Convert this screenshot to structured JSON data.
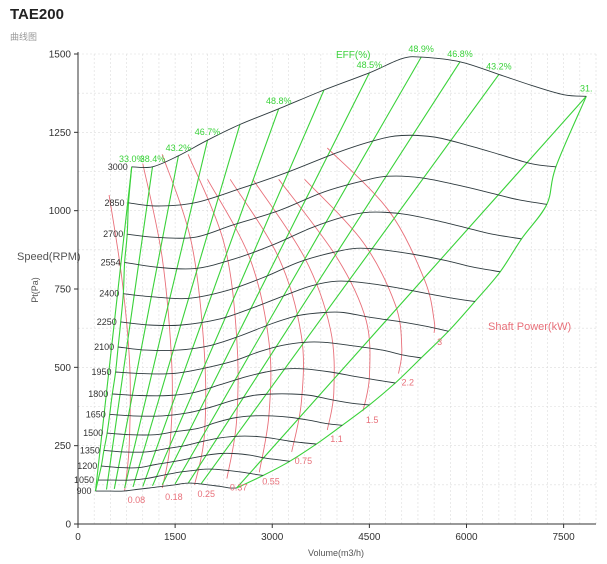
{
  "header": {
    "title": "TAE200",
    "subtitle": "曲线图"
  },
  "chart_data": {
    "type": "line",
    "xlabel": "Volume(m3/h)",
    "ylabel": "Pt(Pa)",
    "xlim": [
      0,
      8000
    ],
    "ylim": [
      0,
      1500
    ],
    "x_ticks": [
      "0",
      "1500",
      "3000",
      "4500",
      "6000",
      "7500"
    ],
    "x_tick_values": [
      0,
      1500,
      3000,
      4500,
      6000,
      7500
    ],
    "y_ticks": [
      "0",
      "250",
      "500",
      "750",
      "1000",
      "1250",
      "1500"
    ],
    "y_tick_values": [
      0,
      250,
      500,
      750,
      1000,
      1250,
      1500
    ],
    "grid": true,
    "speed_title": "Speed(RPM)",
    "eff_title": "EFF(%)",
    "power_title": "Shaft Power(kW)",
    "colors": {
      "speed": "#2f3b3f",
      "efficiency": "#3ad23a",
      "power": "#e8707a",
      "grid": "#dcdcdc"
    },
    "speed_series": [
      {
        "rpm": "3000",
        "x": [
          830,
          1150,
          1550,
          2000,
          2500,
          3100,
          3800,
          4500,
          5000,
          5300,
          5900,
          6500,
          7000,
          7500,
          7850
        ],
        "y": [
          1140,
          1140,
          1175,
          1225,
          1275,
          1325,
          1385,
          1440,
          1485,
          1490,
          1475,
          1435,
          1400,
          1370,
          1365
        ]
      },
      {
        "rpm": "2850",
        "x": [
          780,
          1200,
          1800,
          2500,
          3200,
          4000,
          4600,
          5000,
          5500,
          6000,
          6500,
          7000,
          7380
        ],
        "y": [
          1025,
          1015,
          1025,
          1070,
          1120,
          1185,
          1225,
          1240,
          1235,
          1210,
          1180,
          1150,
          1140
        ]
      },
      {
        "rpm": "2700",
        "x": [
          760,
          1200,
          1800,
          2400,
          3100,
          3800,
          4400,
          4800,
          5300,
          5900,
          6400,
          6800,
          7240
        ],
        "y": [
          925,
          915,
          915,
          955,
          1000,
          1060,
          1095,
          1110,
          1105,
          1080,
          1055,
          1035,
          1020
        ]
      },
      {
        "rpm": "2554",
        "x": [
          720,
          1200,
          1800,
          2400,
          3000,
          3600,
          4100,
          4500,
          5000,
          5500,
          6000,
          6400,
          6850
        ],
        "y": [
          835,
          820,
          815,
          845,
          890,
          945,
          980,
          995,
          990,
          970,
          945,
          925,
          910
        ]
      },
      {
        "rpm": "2400",
        "x": [
          700,
          1150,
          1700,
          2300,
          2900,
          3400,
          3900,
          4300,
          4700,
          5200,
          5700,
          6100,
          6520
        ],
        "y": [
          735,
          725,
          720,
          745,
          790,
          835,
          865,
          880,
          875,
          860,
          840,
          820,
          805
        ]
      },
      {
        "rpm": "2250",
        "x": [
          660,
          1100,
          1600,
          2200,
          2700,
          3200,
          3600,
          4000,
          4400,
          4900,
          5400,
          5800,
          6130
        ],
        "y": [
          645,
          635,
          635,
          655,
          690,
          730,
          760,
          775,
          770,
          755,
          735,
          720,
          710
        ]
      },
      {
        "rpm": "2100",
        "x": [
          620,
          1050,
          1550,
          2050,
          2500,
          3000,
          3400,
          3800,
          4100,
          4500,
          5000,
          5400,
          5720
        ],
        "y": [
          565,
          555,
          555,
          570,
          600,
          640,
          665,
          675,
          675,
          660,
          645,
          630,
          615
        ]
      },
      {
        "rpm": "1950",
        "x": [
          580,
          1000,
          1450,
          1900,
          2400,
          2800,
          3150,
          3500,
          3800,
          4200,
          4700,
          5000,
          5300
        ],
        "y": [
          485,
          480,
          480,
          495,
          520,
          550,
          570,
          580,
          580,
          570,
          555,
          540,
          530
        ]
      },
      {
        "rpm": "1800",
        "x": [
          530,
          950,
          1400,
          1800,
          2200,
          2600,
          2900,
          3200,
          3500,
          3900,
          4300,
          4600,
          4900
        ],
        "y": [
          415,
          410,
          410,
          420,
          445,
          470,
          485,
          495,
          495,
          485,
          470,
          460,
          450
        ]
      },
      {
        "rpm": "1650",
        "x": [
          490,
          850,
          1300,
          1700,
          2000,
          2400,
          2700,
          3000,
          3300,
          3600,
          3950,
          4250,
          4500
        ],
        "y": [
          350,
          345,
          345,
          355,
          370,
          395,
          410,
          415,
          415,
          410,
          395,
          385,
          380
        ]
      },
      {
        "rpm": "1500",
        "x": [
          450,
          800,
          1200,
          1500,
          1850,
          2150,
          2450,
          2700,
          3000,
          3300,
          3600,
          3850,
          4080
        ],
        "y": [
          290,
          285,
          285,
          295,
          305,
          325,
          340,
          345,
          345,
          340,
          330,
          320,
          315
        ]
      },
      {
        "rpm": "1350",
        "x": [
          400,
          700,
          1050,
          1350,
          1650,
          1950,
          2200,
          2450,
          2700,
          2950,
          3250,
          3450,
          3680
        ],
        "y": [
          235,
          230,
          230,
          240,
          250,
          265,
          275,
          280,
          280,
          275,
          265,
          260,
          255
        ]
      },
      {
        "rpm": "1200",
        "x": [
          360,
          650,
          950,
          1200,
          1500,
          1750,
          2000,
          2200,
          2400,
          2650,
          2900,
          3100,
          3270
        ],
        "y": [
          185,
          180,
          180,
          190,
          200,
          210,
          220,
          225,
          225,
          220,
          210,
          205,
          200
        ]
      },
      {
        "rpm": "1050",
        "x": [
          310,
          550,
          800,
          1050,
          1300,
          1550,
          1750,
          1950,
          2100,
          2350,
          2550,
          2700,
          2860
        ],
        "y": [
          140,
          140,
          140,
          145,
          155,
          165,
          170,
          175,
          175,
          170,
          165,
          160,
          155
        ]
      },
      {
        "rpm": "900",
        "x": [
          270,
          500,
          700,
          900,
          1100,
          1300,
          1500,
          1650,
          1800,
          2000,
          2200,
          2350,
          2450
        ],
        "y": [
          105,
          105,
          105,
          110,
          115,
          120,
          125,
          130,
          130,
          125,
          120,
          115,
          115
        ]
      }
    ],
    "efficiency_series": [
      {
        "label": "33.0%",
        "x": [
          270,
          830
        ],
        "y": [
          105,
          1140
        ]
      },
      {
        "label": "38.4%",
        "x": [
          440,
          1150
        ],
        "y": [
          110,
          1140
        ]
      },
      {
        "label": "43.2%",
        "x": [
          560,
          1550
        ],
        "y": [
          112,
          1175
        ]
      },
      {
        "label": "46.7%",
        "x": [
          720,
          2000
        ],
        "y": [
          115,
          1225
        ]
      },
      {
        "label": "",
        "x": [
          850,
          2500
        ],
        "y": [
          118,
          1275
        ]
      },
      {
        "label": "48.8%",
        "x": [
          1000,
          3100
        ],
        "y": [
          120,
          1325
        ]
      },
      {
        "label": "",
        "x": [
          1150,
          3800
        ],
        "y": [
          122,
          1385
        ]
      },
      {
        "label": "48.5%",
        "x": [
          1300,
          4500
        ],
        "y": [
          125,
          1440
        ]
      },
      {
        "label": "48.9%",
        "x": [
          1500,
          5300
        ],
        "y": [
          128,
          1490
        ]
      },
      {
        "label": "46.8%",
        "x": [
          1700,
          5900
        ],
        "y": [
          130,
          1475
        ]
      },
      {
        "label": "43.2%",
        "x": [
          1900,
          6500
        ],
        "y": [
          128,
          1435
        ]
      },
      {
        "label": "31.",
        "x": [
          2450,
          7850
        ],
        "y": [
          115,
          1365
        ]
      }
    ],
    "power_series": [
      {
        "label": "0.08",
        "x": [
          480,
          680,
          800,
          790,
          720
        ],
        "y": [
          1050,
          780,
          500,
          250,
          105
        ]
      },
      {
        "label": "0.18",
        "x": [
          1000,
          1300,
          1450,
          1420,
          1300
        ],
        "y": [
          1150,
          850,
          500,
          250,
          115
        ]
      },
      {
        "label": "0.25",
        "x": [
          1300,
          1750,
          1950,
          1950,
          1800
        ],
        "y": [
          1180,
          900,
          550,
          280,
          125
        ]
      },
      {
        "label": "0.37",
        "x": [
          1700,
          2250,
          2450,
          2450,
          2300
        ],
        "y": [
          1180,
          900,
          600,
          330,
          145
        ]
      },
      {
        "label": "0.55",
        "x": [
          2000,
          2650,
          2950,
          2950,
          2800
        ],
        "y": [
          1100,
          850,
          580,
          350,
          165
        ]
      },
      {
        "label": "0.75",
        "x": [
          2350,
          3100,
          3450,
          3450,
          3300
        ],
        "y": [
          1100,
          850,
          600,
          390,
          230
        ]
      },
      {
        "label": "1.1",
        "x": [
          2700,
          3500,
          3900,
          3950,
          3850
        ],
        "y": [
          1100,
          850,
          620,
          420,
          300
        ]
      },
      {
        "label": "1.5",
        "x": [
          3100,
          4000,
          4450,
          4500,
          4400
        ],
        "y": [
          1100,
          850,
          650,
          470,
          360
        ]
      },
      {
        "label": "2.2",
        "x": [
          3500,
          4400,
          4900,
          5000,
          4950
        ],
        "y": [
          1100,
          900,
          700,
          560,
          480
        ]
      },
      {
        "label": "3",
        "x": [
          3850,
          4800,
          5350,
          5500,
          5500
        ],
        "y": [
          1200,
          1000,
          780,
          650,
          610
        ]
      }
    ]
  }
}
